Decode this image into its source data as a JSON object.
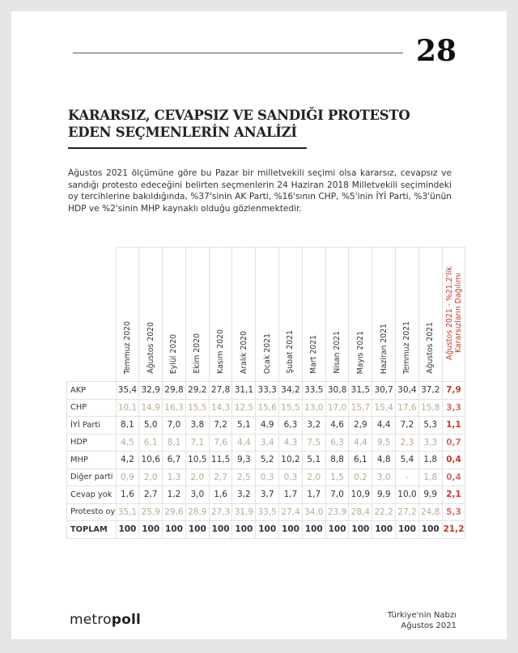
{
  "page_number": "28",
  "title_line1": "KARARSIZ, CEVAPSIZ VE SANDIĞI PROTESTO",
  "title_line2": "EDEN SEÇMENLERİN ANALİZİ",
  "paragraph": "Ağustos 2021 ölçümüne göre bu Pazar bir milletvekili seçimi olsa kararsız, cevapsız ve sandığı protesto edeceğini belirten seçmenlerin 24 Haziran 2018 Milletvekili seçimindeki oy tercihlerine bakıldığında, %37'sinin AK Parti, %16'sının CHP, %5'inin İYİ Parti, %3'ünün HDP ve %2'sinin MHP kaynaklı olduğu gözlenmektedir.",
  "table": {
    "columns": [
      "Temmuz 2020",
      "Ağustos 2020",
      "Eylül 2020",
      "Ekim 2020",
      "Kasım 2020",
      "Aralık 2020",
      "Ocak 2021",
      "Şubat 2021",
      "Mart 2021",
      "Nisan 2021",
      "Mayıs 2021",
      "Haziran 2021",
      "Temmuz 2021",
      "Ağustos 2021",
      "Ağustos 2021 - %21,2'lik Kararsızların Dağılımı"
    ],
    "rows": [
      {
        "label": "AKP",
        "values": [
          "35,4",
          "32,9",
          "29,8",
          "29,2",
          "27,8",
          "31,1",
          "33,3",
          "34,2",
          "33,5",
          "30,8",
          "31,5",
          "30,7",
          "30,4",
          "37,2",
          "7,9"
        ]
      },
      {
        "label": "CHP",
        "values": [
          "10,1",
          "14,9",
          "16,3",
          "15,5",
          "14,3",
          "12,5",
          "15,6",
          "15,5",
          "13,0",
          "17,0",
          "15,7",
          "15,4",
          "17,6",
          "15,8",
          "3,3"
        ]
      },
      {
        "label": "İYİ Parti",
        "values": [
          "8,1",
          "5,0",
          "7,0",
          "3,8",
          "7,2",
          "5,1",
          "4,9",
          "6,3",
          "3,2",
          "4,6",
          "2,9",
          "4,4",
          "7,2",
          "5,3",
          "1,1"
        ]
      },
      {
        "label": "HDP",
        "values": [
          "4,5",
          "6,1",
          "8,1",
          "7,1",
          "7,6",
          "4,4",
          "3,4",
          "4,3",
          "7,5",
          "6,3",
          "4,4",
          "9,5",
          "2,3",
          "3,3",
          "0,7"
        ]
      },
      {
        "label": "MHP",
        "values": [
          "4,2",
          "10,6",
          "6,7",
          "10,5",
          "11,5",
          "9,3",
          "5,2",
          "10,2",
          "5,1",
          "8,8",
          "6,1",
          "4,8",
          "5,4",
          "1,8",
          "0,4"
        ]
      },
      {
        "label": "Diğer parti",
        "values": [
          "0,9",
          "2,0",
          "1,3",
          "2,0",
          "2,7",
          "2,5",
          "0,3",
          "0,3",
          "2,0",
          "1,5",
          "0,2",
          "3,0",
          "-",
          "1,8",
          "0,4"
        ]
      },
      {
        "label": "Cevap yok",
        "values": [
          "1,6",
          "2,7",
          "1,2",
          "3,0",
          "1,6",
          "3,2",
          "3,7",
          "1,7",
          "1,7",
          "7,0",
          "10,9",
          "9,9",
          "10,0",
          "9,9",
          "2,1"
        ]
      },
      {
        "label": "Protesto oy",
        "values": [
          "35,1",
          "25,9",
          "29,6",
          "28,9",
          "27,3",
          "31,9",
          "33,5",
          "27,4",
          "34,0",
          "23,9",
          "28,4",
          "22,2",
          "27,2",
          "24,8",
          "5,3"
        ]
      },
      {
        "label": "TOPLAM",
        "values": [
          "100",
          "100",
          "100",
          "100",
          "100",
          "100",
          "100",
          "100",
          "100",
          "100",
          "100",
          "100",
          "100",
          "100",
          "21,2"
        ]
      }
    ]
  },
  "footer": {
    "logo_a": "metro",
    "logo_b": "poll",
    "line1": "Türkiye'nin Nabzı",
    "line2": "Ağustos 2021"
  },
  "colors": {
    "accent_red": "#c0392b",
    "light_row_text": "#bba98f"
  }
}
